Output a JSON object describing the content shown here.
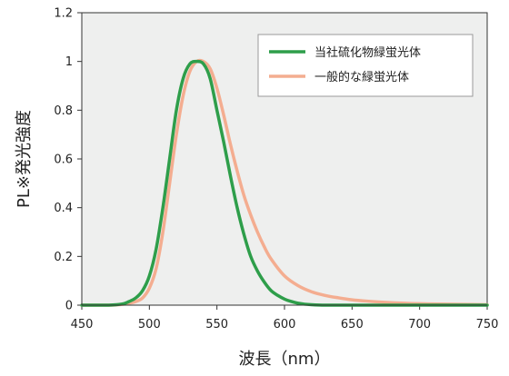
{
  "chart_data": {
    "type": "line",
    "title": "",
    "xlabel": "波長（nm）",
    "ylabel": "PL※発光強度",
    "xlim": [
      450,
      750
    ],
    "ylim": [
      0,
      1.2
    ],
    "xticks": [
      "450",
      "500",
      "550",
      "600",
      "650",
      "700",
      "750"
    ],
    "yticks": [
      "0",
      "0.2",
      "0.4",
      "0.6",
      "0.8",
      "1",
      "1.2"
    ],
    "grid": false,
    "legend_position": "top-right",
    "plot_background": "#eeefee",
    "series": [
      {
        "name": "当社硫化物緑蛍光体",
        "color": "#2e9e4a",
        "x": [
          450,
          470,
          480,
          485,
          490,
          495,
          500,
          505,
          510,
          515,
          520,
          525,
          530,
          535,
          540,
          545,
          550,
          555,
          560,
          565,
          570,
          575,
          580,
          585,
          590,
          595,
          600,
          605,
          610,
          615,
          620,
          630,
          640,
          650,
          700,
          750
        ],
        "y": [
          0.0,
          0.0,
          0.005,
          0.015,
          0.03,
          0.06,
          0.12,
          0.23,
          0.4,
          0.6,
          0.8,
          0.93,
          0.99,
          1.0,
          0.99,
          0.93,
          0.8,
          0.67,
          0.53,
          0.4,
          0.29,
          0.2,
          0.14,
          0.095,
          0.06,
          0.04,
          0.025,
          0.015,
          0.008,
          0.004,
          0.002,
          0.0,
          0.0,
          0.0,
          0.0,
          0.0
        ]
      },
      {
        "name": "一般的な緑蛍光体",
        "color": "#f4ad90",
        "x": [
          450,
          470,
          480,
          485,
          490,
          495,
          500,
          505,
          510,
          515,
          520,
          525,
          530,
          535,
          540,
          545,
          550,
          555,
          560,
          565,
          570,
          575,
          580,
          585,
          590,
          600,
          610,
          620,
          630,
          640,
          650,
          660,
          680,
          700,
          720,
          750
        ],
        "y": [
          0.0,
          0.0,
          0.003,
          0.008,
          0.015,
          0.03,
          0.07,
          0.15,
          0.3,
          0.5,
          0.7,
          0.86,
          0.96,
          1.0,
          1.0,
          0.97,
          0.89,
          0.78,
          0.66,
          0.55,
          0.45,
          0.37,
          0.3,
          0.24,
          0.19,
          0.12,
          0.08,
          0.055,
          0.04,
          0.03,
          0.022,
          0.017,
          0.01,
          0.006,
          0.004,
          0.002
        ]
      }
    ]
  }
}
